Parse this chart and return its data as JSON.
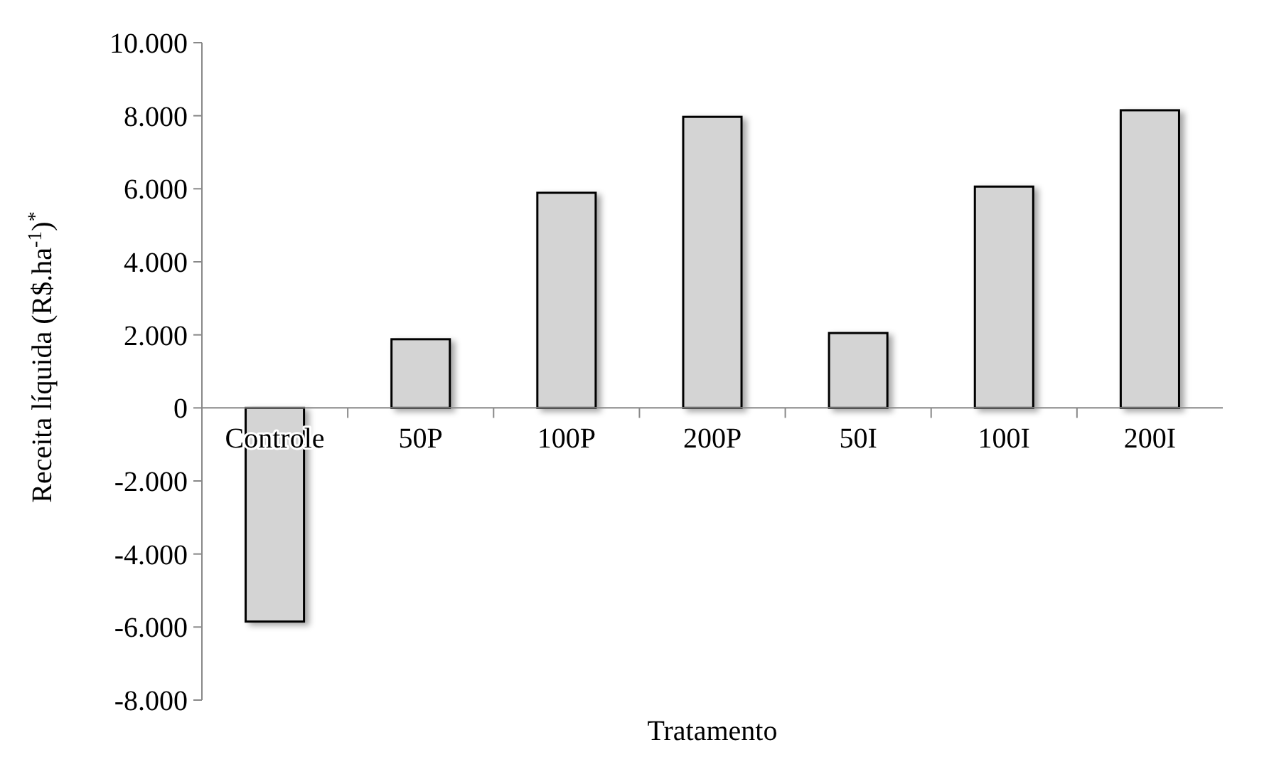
{
  "chart_data": {
    "type": "bar",
    "xlabel": "Tratamento",
    "ylabel": "Receita líquida (R$.ha$^{-1}$)$^{*}$",
    "categories": [
      "Controle",
      "50P",
      "100P",
      "200P",
      "50I",
      "100I",
      "200I"
    ],
    "values": [
      -5850,
      1880,
      5890,
      7970,
      2050,
      6060,
      8150
    ],
    "color": "#d4d4d4",
    "ylim": [
      -8000,
      10000
    ],
    "yticks": [
      {
        "value": -8000,
        "label": "-8.000"
      },
      {
        "value": -6000,
        "label": "-6.000"
      },
      {
        "value": -4000,
        "label": "-4.000"
      },
      {
        "value": -2000,
        "label": "-2.000"
      },
      0,
      {
        "value": 2000,
        "label": "2.000"
      },
      {
        "value": 4000,
        "label": "4.000"
      },
      {
        "value": 6000,
        "label": "6.000"
      },
      {
        "value": 8000,
        "label": "8.000"
      },
      {
        "value": 10000,
        "label": "10.000"
      }
    ],
    "grid": false
  }
}
